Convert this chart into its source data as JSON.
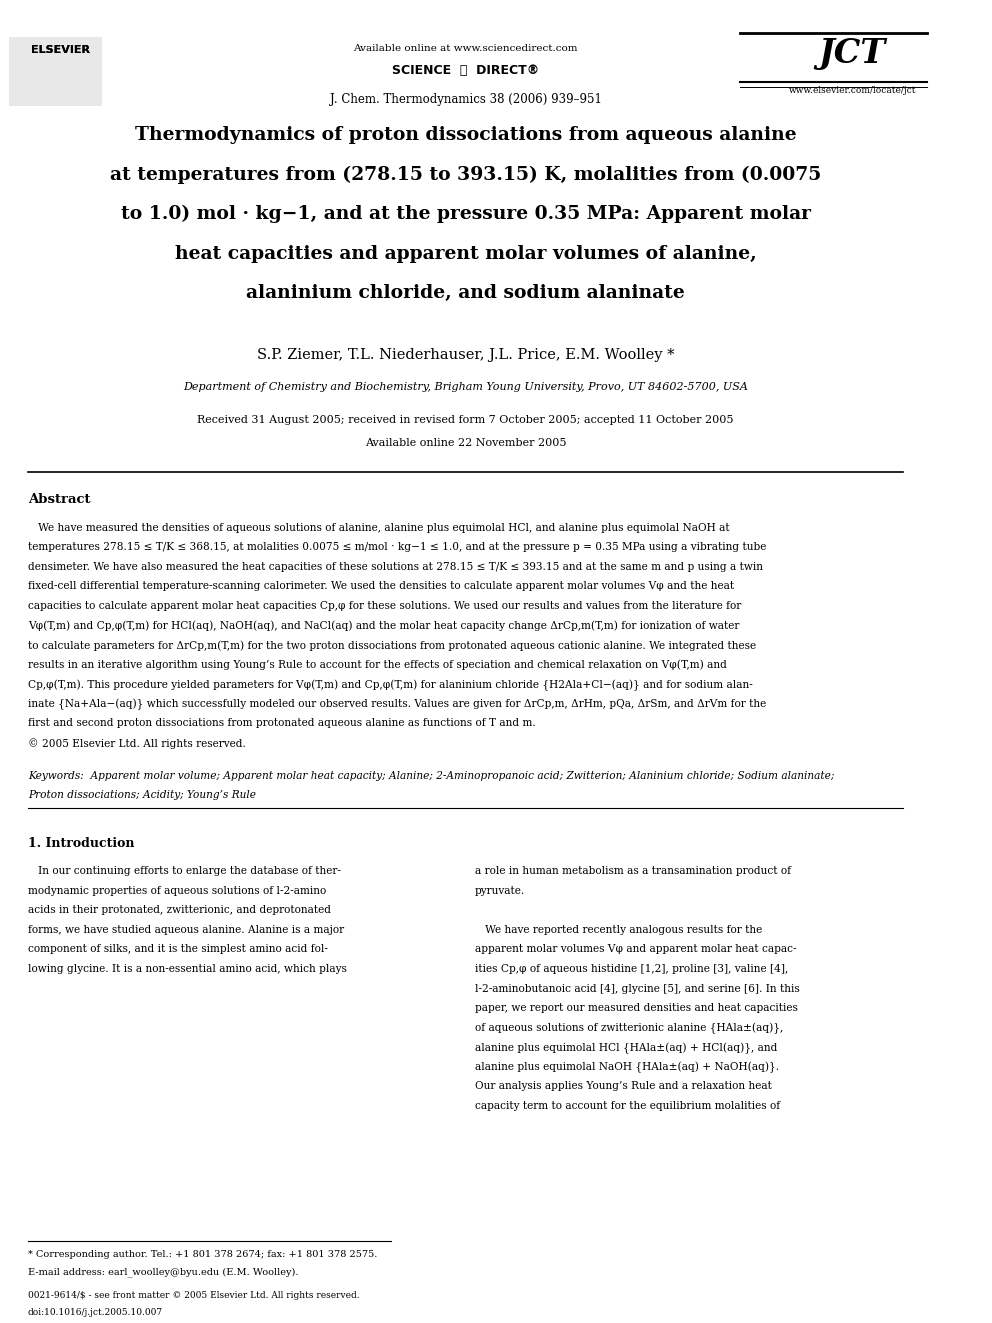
{
  "page_width": 9.92,
  "page_height": 13.23,
  "bg_color": "#ffffff",
  "header_available": "Available online at www.sciencedirect.com",
  "header_sciencedirect": "SCIENCE  d  DIRECT",
  "header_journal": "J. Chem. Thermodynamics 38 (2006) 939–951",
  "header_website": "www.elsevier.com/locate/jct",
  "title_lines": [
    "Thermodynamics of proton dissociations from aqueous alanine",
    "at temperatures from (278.15 to 393.15) K, molalities from (0.0075",
    "to 1.0) mol · kg−1, and at the pressure 0.35 MPa: Apparent molar",
    "heat capacities and apparent molar volumes of alanine,",
    "alaninium chloride, and sodium alaninate"
  ],
  "authors": "S.P. Ziemer, T.L. Niederhauser, J.L. Price, E.M. Woolley *",
  "affiliation": "Department of Chemistry and Biochemistry, Brigham Young University, Provo, UT 84602-5700, USA",
  "received": "Received 31 August 2005; received in revised form 7 October 2005; accepted 11 October 2005",
  "available": "Available online 22 November 2005",
  "abstract_title": "Abstract",
  "abstract_lines": [
    "   We have measured the densities of aqueous solutions of alanine, alanine plus equimolal HCl, and alanine plus equimolal NaOH at",
    "temperatures 278.15 ≤ T/K ≤ 368.15, at molalities 0.0075 ≤ m/mol · kg−1 ≤ 1.0, and at the pressure p = 0.35 MPa using a vibrating tube",
    "densimeter. We have also measured the heat capacities of these solutions at 278.15 ≤ T/K ≤ 393.15 and at the same m and p using a twin",
    "fixed-cell differential temperature-scanning calorimeter. We used the densities to calculate apparent molar volumes Vφ and the heat",
    "capacities to calculate apparent molar heat capacities Cp,φ for these solutions. We used our results and values from the literature for",
    "Vφ(T,m) and Cp,φ(T,m) for HCl(aq), NaOH(aq), and NaCl(aq) and the molar heat capacity change ΔrCp,m(T,m) for ionization of water",
    "to calculate parameters for ΔrCp,m(T,m) for the two proton dissociations from protonated aqueous cationic alanine. We integrated these",
    "results in an iterative algorithm using Young’s Rule to account for the effects of speciation and chemical relaxation on Vφ(T,m) and",
    "Cp,φ(T,m). This procedure yielded parameters for Vφ(T,m) and Cp,φ(T,m) for alaninium chloride {H2Ala+Cl−(aq)} and for sodium alan-",
    "inate {Na+Ala−(aq)} which successfully modeled our observed results. Values are given for ΔrCp,m, ΔrHm, pQa, ΔrSm, and ΔrVm for the",
    "first and second proton dissociations from protonated aqueous alanine as functions of T and m.",
    "© 2005 Elsevier Ltd. All rights reserved."
  ],
  "keywords_label": "Keywords:",
  "keywords_line1": "Apparent molar volume; Apparent molar heat capacity; Alanine; 2-Aminopropanoic acid; Zwitterion; Alaninium chloride; Sodium alaninate;",
  "keywords_line2": "Proton dissociations; Acidity; Young’s Rule",
  "section1_title": "1. Introduction",
  "col1_lines": [
    "   In our continuing efforts to enlarge the database of ther-",
    "modynamic properties of aqueous solutions of l-2-amino",
    "acids in their protonated, zwitterionic, and deprotonated",
    "forms, we have studied aqueous alanine. Alanine is a major",
    "component of silks, and it is the simplest amino acid fol-",
    "lowing glycine. It is a non-essential amino acid, which plays"
  ],
  "col2_lines": [
    "a role in human metabolism as a transamination product of",
    "pyruvate.",
    "",
    "   We have reported recently analogous results for the",
    "apparent molar volumes Vφ and apparent molar heat capac-",
    "ities Cp,φ of aqueous histidine [1,2], proline [3], valine [4],",
    "l-2-aminobutanoic acid [4], glycine [5], and serine [6]. In this",
    "paper, we report our measured densities and heat capacities",
    "of aqueous solutions of zwitterionic alanine {HAla±(aq)},",
    "alanine plus equimolal HCl {HAla±(aq) + HCl(aq)}, and",
    "alanine plus equimolal NaOH {HAla±(aq) + NaOH(aq)}.",
    "Our analysis applies Young’s Rule and a relaxation heat",
    "capacity term to account for the equilibrium molalities of"
  ],
  "footnote_line1": "* Corresponding author. Tel.: +1 801 378 2674; fax: +1 801 378 2575.",
  "footnote_line2": "E-mail address: earl_woolley@byu.edu (E.M. Woolley).",
  "footer_issn": "0021-9614/$ - see front matter © 2005 Elsevier Ltd. All rights reserved.",
  "footer_doi": "doi:10.1016/j.jct.2005.10.007"
}
